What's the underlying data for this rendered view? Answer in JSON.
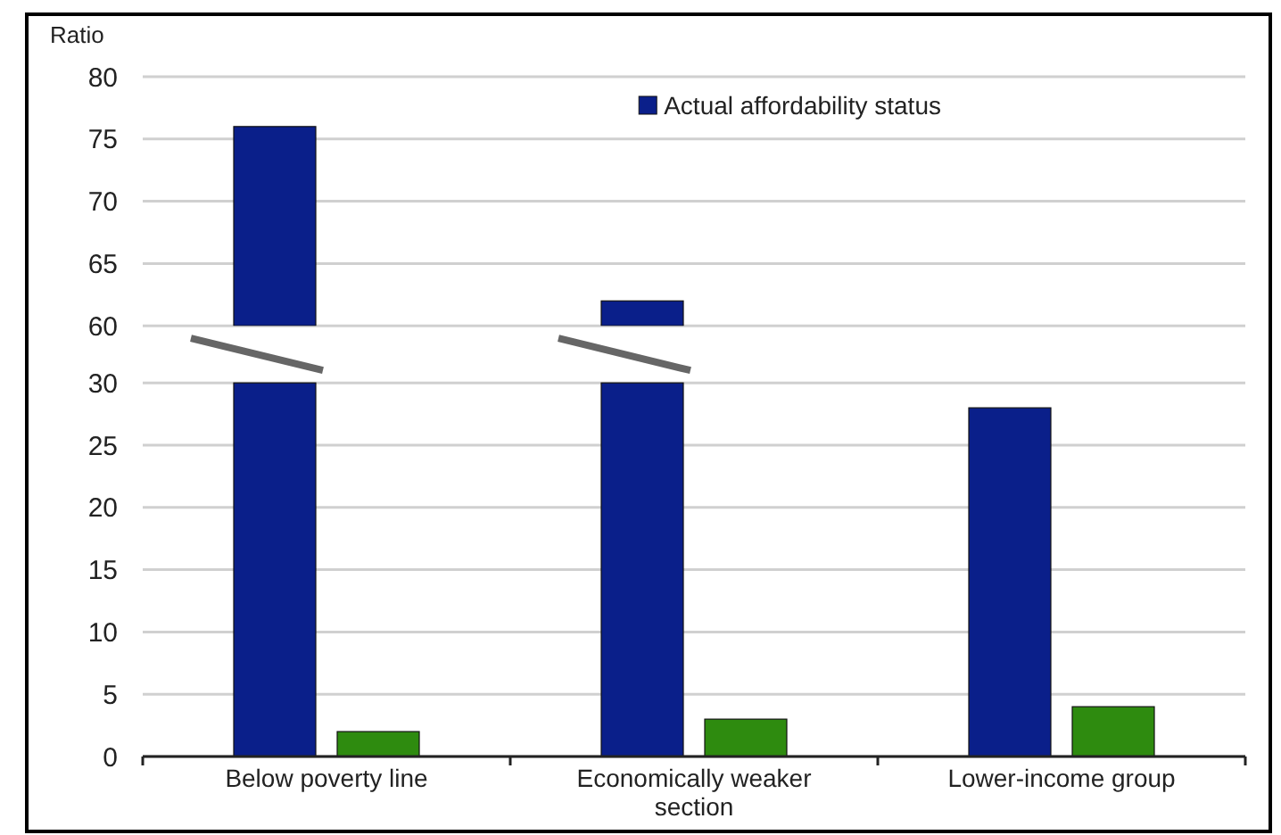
{
  "chart_data": [
    {
      "type": "bar",
      "ylabel": "Ratio",
      "series": [
        {
          "name": "Actual affordability status",
          "color": "#0a1f8a",
          "values": [
            76,
            62,
            null
          ]
        }
      ],
      "ylim": [
        60,
        80
      ],
      "yticks": [
        60,
        65,
        70,
        75,
        80
      ],
      "grid": "y",
      "legend": "top right",
      "tick_labels": "y"
    },
    {
      "type": "bar",
      "categories": [
        "Below poverty line",
        "Economically weaker section",
        "Lower-income group"
      ],
      "series": [
        {
          "color": "#0a1f8a",
          "values": [
            30,
            30,
            28
          ]
        },
        {
          "color": "#2e8b0f",
          "values": [
            2,
            3,
            4
          ]
        }
      ],
      "ylim": [
        0,
        30
      ],
      "yticks": [
        0,
        5,
        10,
        15,
        20,
        25,
        30
      ],
      "grid": "y"
    }
  ]
}
